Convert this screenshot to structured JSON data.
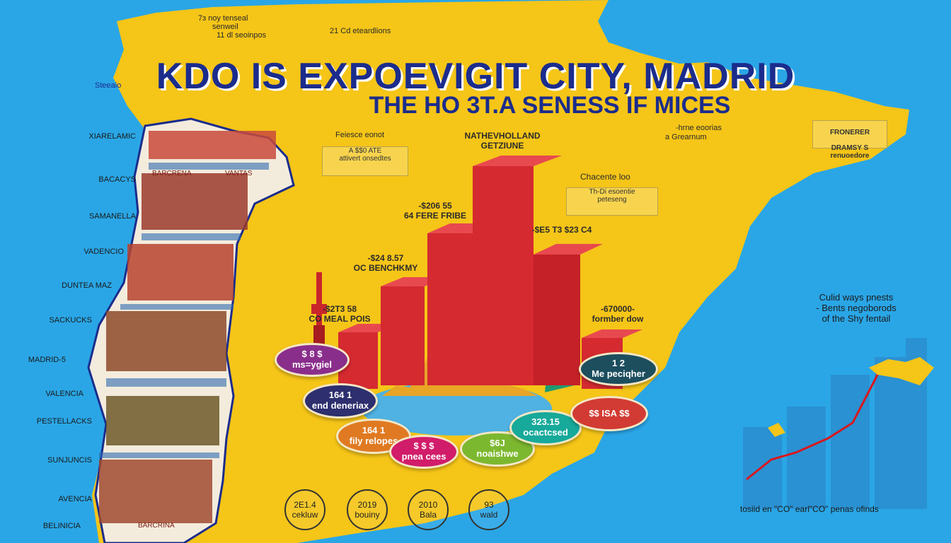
{
  "header": {
    "title": "KDO IS EXPOEVIGIT CITY, MADRID",
    "subtitle": "THE HO 3T.A SENESS IF MICES"
  },
  "top_labels": [
    {
      "text": "7ɜ noy tenseal"
    },
    {
      "text": "senweil"
    },
    {
      "text": "11 dl seoinpos"
    },
    {
      "text": "21 Cd eteardlions"
    },
    {
      "text": "Steeaio"
    }
  ],
  "cities": [
    "XIARELAMIC",
    "BACACYS",
    "SAMANELLA",
    "VADENCIO",
    "DUNTEA MAZ",
    "SACKUCKS",
    "MADRID-5",
    "VALENCIA",
    "PESTELLACKS",
    "SUNJUNCIS",
    "AVENCIA",
    "BELINICIA"
  ],
  "map_panel_labels": [
    "BARCRENA",
    "VANTAS",
    "BARCRINA"
  ],
  "bar_labels": [
    {
      "text": "-$2T3 58\nCO MEAL POIS"
    },
    {
      "text": "-$24 8.57\nOC BENCHKMY"
    },
    {
      "text": "-$206 55\n64 FERE FRIBE"
    },
    {
      "text": "NATHEVHOLLAND\nGETZIUNE"
    },
    {
      "text": "-$E5 T3 $23 C4"
    },
    {
      "text": "-670000-\nformber dow"
    }
  ],
  "pills": [
    {
      "line1": "$ 8 $",
      "line2": "ms=ygiel",
      "color": "#8a2e8c"
    },
    {
      "line1": "164 1",
      "line2": "end deneriax",
      "color": "#2d2f6e"
    },
    {
      "line1": "164 1",
      "line2": "fily relopes",
      "color": "#e07a22"
    },
    {
      "line1": "$ $ $",
      "line2": "pnea cees",
      "color": "#d11c6a"
    },
    {
      "line1": "$6J",
      "line2": "noaishwe",
      "color": "#7cb82f"
    },
    {
      "line1": "323.15",
      "line2": "ocactcsed",
      "color": "#17a99a"
    },
    {
      "line1": "$$ ISA $$",
      "line2": "",
      "color": "#d23b33"
    },
    {
      "line1": "1 2",
      "line2": "Me peciqher",
      "color": "#1c4e5e"
    }
  ],
  "bottom_stats": [
    {
      "value": "2E1.4",
      "label": "cekluw"
    },
    {
      "value": "2019",
      "label": "bouiny"
    },
    {
      "value": "2010",
      "label": "Bala"
    },
    {
      "value": "93",
      "label": "wald"
    }
  ],
  "annotations": {
    "mid_box_title": "Feiesce eonot",
    "mid_box_text": "A $$0 ATE\nattivert onsedtes",
    "right_box_title": "Chacente loo",
    "right_box_text": "Th-Di esoentie\npeteseng",
    "fr_label_1": "-hrne eoorias",
    "fr_label_2": "a Grearnum",
    "frontier_title": "FRONERER",
    "frontier_text": "DRAMSY S\nrenuoedore",
    "right_note": "Culid ways pnests\n- Bents negoborods\nof the Shy fentail",
    "chart_caption": "tosiid en \"CO\" earl\"CO\" penas ofinds"
  },
  "colors": {
    "sea": "#2aa6e6",
    "land": "#f5c518",
    "title": "#1b2c8c",
    "bars": "#d42a30",
    "right_bars": "#2b8fd0",
    "trend_line": "#d8181e"
  },
  "right_chart": {
    "type": "bar",
    "values": [
      40,
      58,
      78,
      92,
      100
    ],
    "trend": [
      12,
      22,
      38,
      55,
      88
    ]
  }
}
